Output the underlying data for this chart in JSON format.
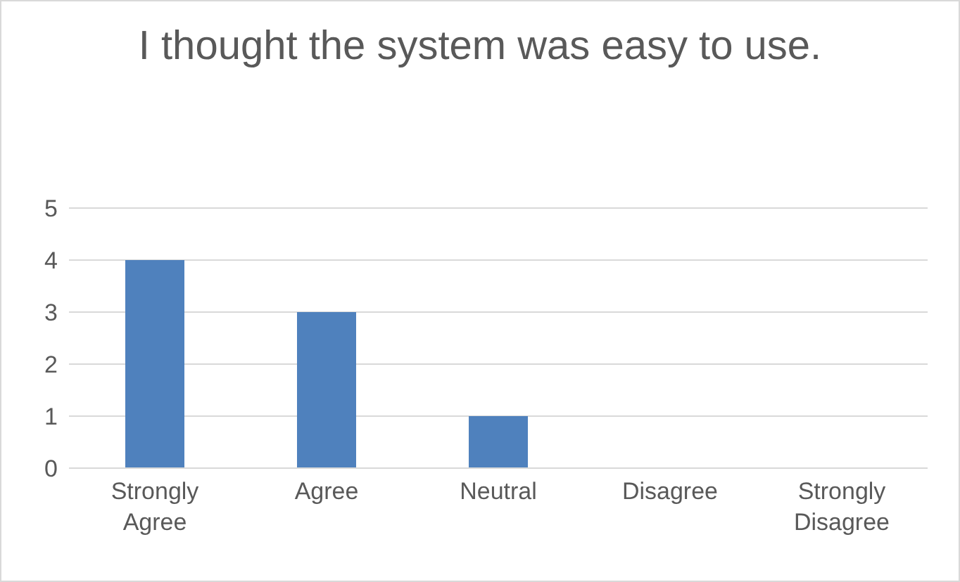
{
  "chart_data": {
    "type": "bar",
    "title": "I thought the system was easy to use.",
    "categories": [
      "Strongly Agree",
      "Agree",
      "Neutral",
      "Disagree",
      "Strongly Disagree"
    ],
    "values": [
      4,
      3,
      1,
      0,
      0
    ],
    "color": "#4f81bd",
    "ylim": [
      0,
      5
    ],
    "yticks": [
      0,
      1,
      2,
      3,
      4,
      5
    ],
    "grid": "y",
    "legend": false
  }
}
